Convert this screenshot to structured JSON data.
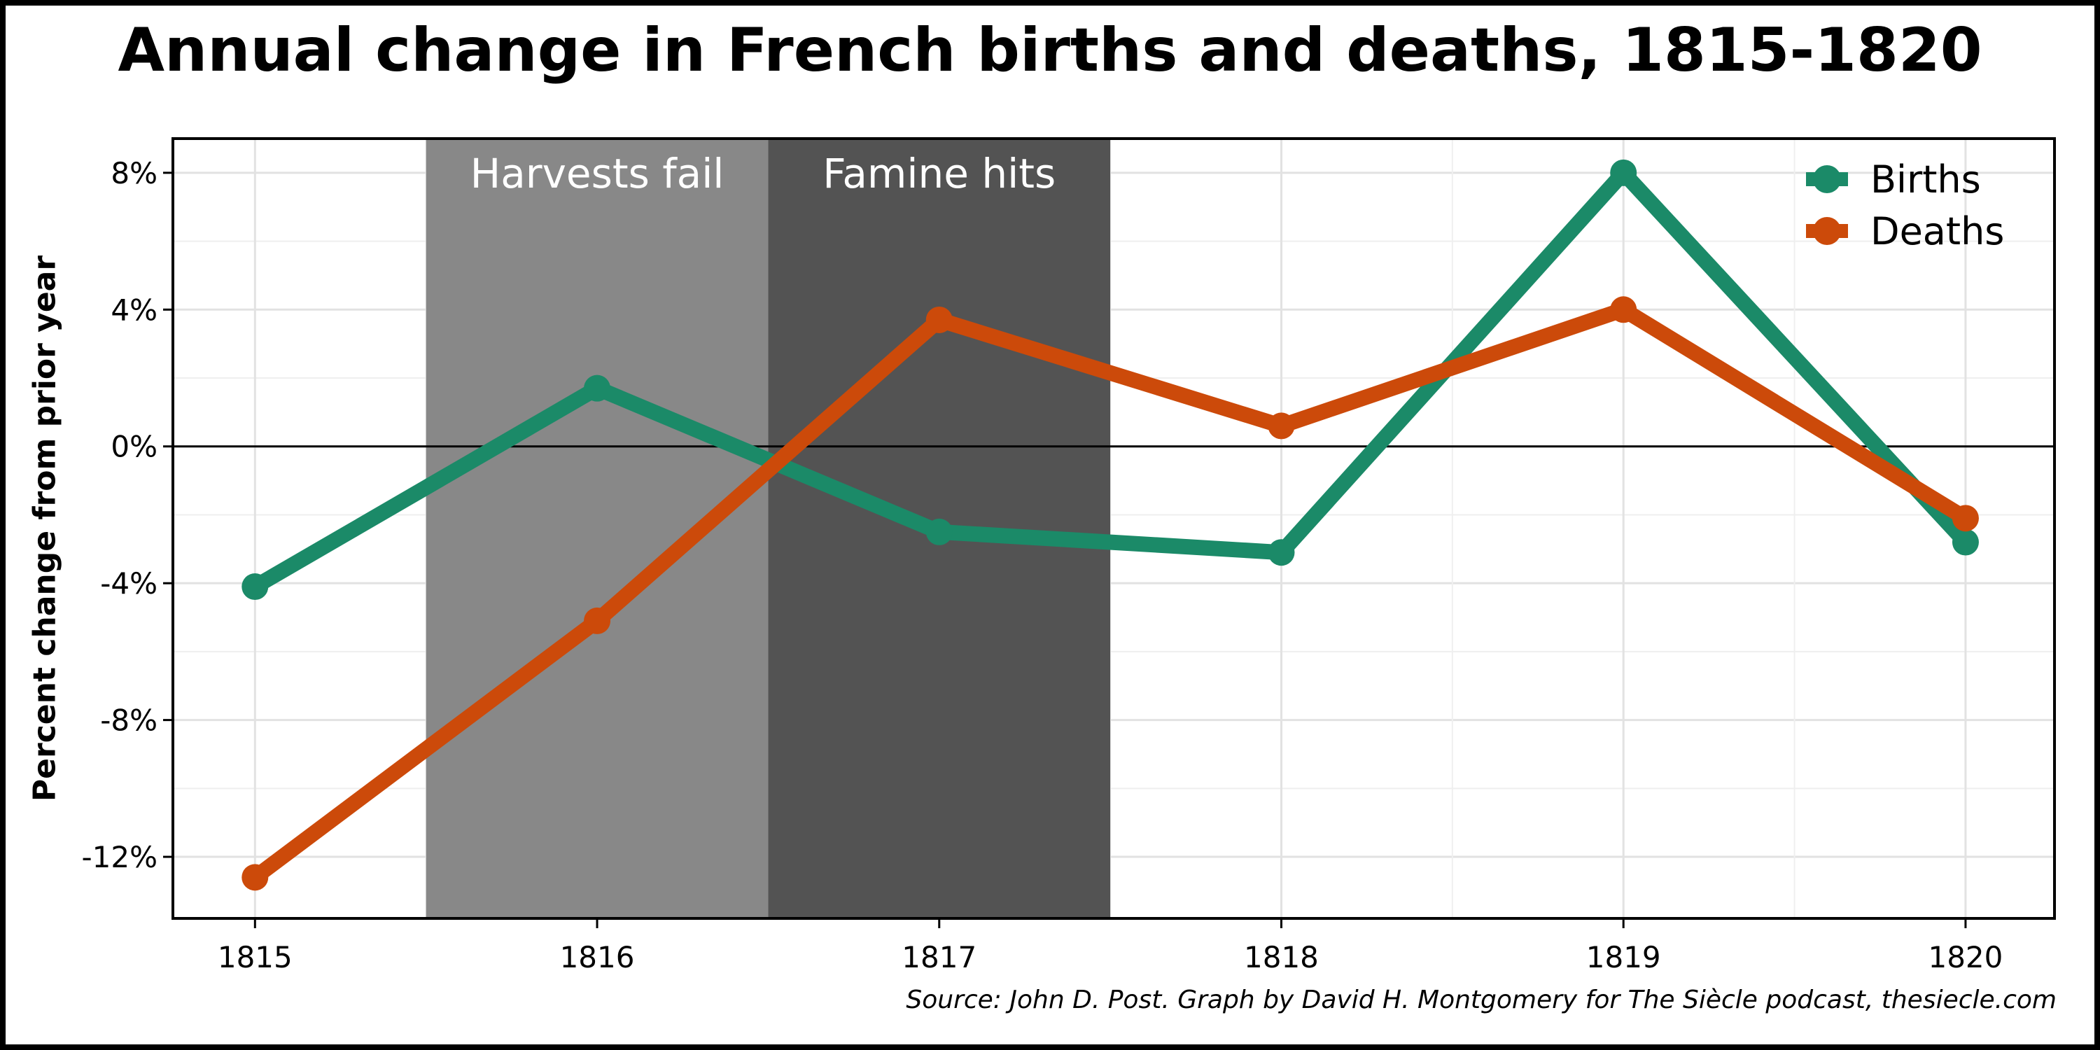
{
  "chart_data": {
    "type": "line",
    "title": "Annual change in French births and deaths, 1815-1820",
    "ylabel": "Percent change from prior year",
    "xlabel": "",
    "x": [
      1815,
      1816,
      1817,
      1818,
      1819,
      1820
    ],
    "x_tick_labels": [
      "1815",
      "1816",
      "1817",
      "1818",
      "1819",
      "1820"
    ],
    "ylim": [
      -13.8,
      9.0
    ],
    "y_ticks": [
      8,
      4,
      0,
      -4,
      -8,
      -12
    ],
    "y_tick_labels": [
      "8%",
      "4%",
      "0%",
      "-4%",
      "-8%",
      "-12%"
    ],
    "series": [
      {
        "name": "Births",
        "values": [
          -4.1,
          1.7,
          -2.5,
          -3.1,
          8.0,
          -2.8
        ],
        "color": "#1b8a68"
      },
      {
        "name": "Deaths",
        "values": [
          -12.6,
          -5.1,
          3.7,
          0.6,
          4.0,
          -2.1
        ],
        "color": "#cc4a0a"
      }
    ],
    "annotations": [
      {
        "label": "Harvests fail",
        "x_start": 1815.5,
        "x_end": 1816.5,
        "color": "#888888"
      },
      {
        "label": "Famine hits",
        "x_start": 1816.5,
        "x_end": 1817.5,
        "color": "#535353"
      }
    ],
    "grid": true,
    "zero_line": true,
    "legend_position": "top-right"
  },
  "source": "Source: John D. Post. Graph by David H. Montgomery for The Siècle podcast, thesiecle.com"
}
